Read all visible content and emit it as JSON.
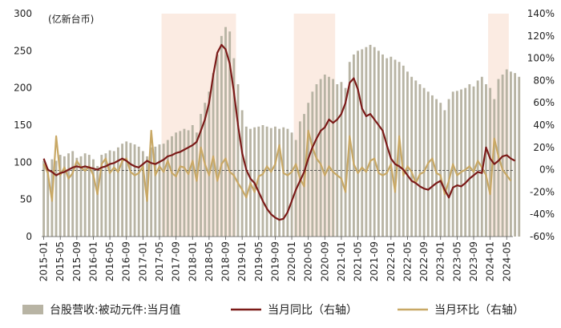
{
  "chart_data": {
    "type": "bar+line",
    "unit_label": "(亿新台币)",
    "left_axis": {
      "min": 0,
      "max": 300,
      "ticks": [
        0,
        50,
        100,
        150,
        200,
        250,
        300
      ]
    },
    "right_axis": {
      "min": -60,
      "max": 140,
      "ticks": [
        "-60%",
        "-40%",
        "-20%",
        "0%",
        "20%",
        "40%",
        "60%",
        "80%",
        "100%",
        "120%",
        "140%"
      ]
    },
    "x_labels": [
      "2015-01",
      "2015-05",
      "2015-09",
      "2016-01",
      "2016-05",
      "2016-09",
      "2017-01",
      "2017-05",
      "2017-09",
      "2018-01",
      "2018-05",
      "2018-09",
      "2019-01",
      "2019-05",
      "2019-09",
      "2020-01",
      "2020-05",
      "2020-09",
      "2021-01",
      "2021-05",
      "2021-09",
      "2022-01",
      "2022-05",
      "2022-09",
      "2023-01",
      "2023-05",
      "2023-09",
      "2024-01",
      "2024-05"
    ],
    "shaded_periods": [
      [
        "2017-06",
        "2018-11"
      ],
      [
        "2020-02",
        "2020-11"
      ],
      [
        "2024-01",
        "2024-05"
      ]
    ],
    "legend": [
      {
        "label": "台股营收:被动元件:当月值",
        "type": "bar",
        "color": "#b8b4a4"
      },
      {
        "label": "当月同比（右轴）",
        "type": "line",
        "color": "#7b1a18"
      },
      {
        "label": "当月环比（右轴）",
        "type": "line",
        "color": "#c8a865"
      }
    ],
    "colors": {
      "bar": "#b8b4a4",
      "yoy": "#7b1a18",
      "mom": "#c8a865",
      "shade": "#fbebe2"
    },
    "series": {
      "bar_anchors": [
        [
          0,
          102
        ],
        [
          1,
          92
        ],
        [
          2,
          104
        ],
        [
          3,
          102
        ],
        [
          4,
          110
        ],
        [
          5,
          108
        ],
        [
          6,
          112
        ],
        [
          7,
          115
        ],
        [
          8,
          106
        ],
        [
          9,
          108
        ],
        [
          10,
          112
        ],
        [
          11,
          110
        ],
        [
          12,
          104
        ],
        [
          13,
          95
        ],
        [
          14,
          110
        ],
        [
          15,
          112
        ],
        [
          16,
          116
        ],
        [
          17,
          115
        ],
        [
          18,
          120
        ],
        [
          19,
          125
        ],
        [
          20,
          128
        ],
        [
          21,
          126
        ],
        [
          22,
          124
        ],
        [
          23,
          121
        ],
        [
          24,
          115
        ],
        [
          25,
          108
        ],
        [
          26,
          120
        ],
        [
          27,
          121
        ],
        [
          28,
          124
        ],
        [
          29,
          125
        ],
        [
          30,
          130
        ],
        [
          31,
          135
        ],
        [
          32,
          140
        ],
        [
          33,
          142
        ],
        [
          34,
          145
        ],
        [
          35,
          143
        ],
        [
          36,
          150
        ],
        [
          37,
          140
        ],
        [
          38,
          165
        ],
        [
          39,
          180
        ],
        [
          40,
          195
        ],
        [
          41,
          220
        ],
        [
          42,
          245
        ],
        [
          43,
          270
        ],
        [
          44,
          282
        ],
        [
          45,
          276
        ],
        [
          46,
          240
        ],
        [
          47,
          205
        ],
        [
          48,
          170
        ],
        [
          49,
          148
        ],
        [
          50,
          145
        ],
        [
          51,
          147
        ],
        [
          52,
          148
        ],
        [
          53,
          150
        ],
        [
          54,
          148
        ],
        [
          55,
          146
        ],
        [
          56,
          148
        ],
        [
          57,
          145
        ],
        [
          58,
          147
        ],
        [
          59,
          145
        ],
        [
          60,
          140
        ],
        [
          61,
          130
        ],
        [
          62,
          155
        ],
        [
          63,
          165
        ],
        [
          64,
          180
        ],
        [
          65,
          195
        ],
        [
          66,
          205
        ],
        [
          67,
          212
        ],
        [
          68,
          218
        ],
        [
          69,
          215
        ],
        [
          70,
          212
        ],
        [
          71,
          205
        ],
        [
          72,
          208
        ],
        [
          73,
          200
        ],
        [
          74,
          235
        ],
        [
          75,
          245
        ],
        [
          76,
          250
        ],
        [
          77,
          252
        ],
        [
          78,
          255
        ],
        [
          79,
          258
        ],
        [
          80,
          255
        ],
        [
          81,
          250
        ],
        [
          82,
          245
        ],
        [
          83,
          240
        ],
        [
          84,
          242
        ],
        [
          85,
          238
        ],
        [
          86,
          235
        ],
        [
          87,
          230
        ],
        [
          88,
          222
        ],
        [
          89,
          215
        ],
        [
          90,
          210
        ],
        [
          91,
          205
        ],
        [
          92,
          200
        ],
        [
          93,
          195
        ],
        [
          94,
          190
        ],
        [
          95,
          185
        ],
        [
          96,
          180
        ],
        [
          97,
          170
        ],
        [
          98,
          185
        ],
        [
          99,
          195
        ],
        [
          100,
          196
        ],
        [
          101,
          198
        ],
        [
          102,
          200
        ],
        [
          103,
          205
        ],
        [
          104,
          202
        ],
        [
          105,
          210
        ],
        [
          106,
          215
        ],
        [
          107,
          205
        ],
        [
          108,
          200
        ],
        [
          109,
          185
        ],
        [
          110,
          212
        ],
        [
          111,
          218
        ],
        [
          112,
          225
        ],
        [
          113,
          222
        ],
        [
          114,
          220
        ],
        [
          115,
          215
        ]
      ],
      "yoy_anchors": [
        [
          0,
          10
        ],
        [
          1,
          0
        ],
        [
          2,
          -2
        ],
        [
          3,
          -5
        ],
        [
          4,
          -3
        ],
        [
          5,
          -2
        ],
        [
          6,
          0
        ],
        [
          7,
          2
        ],
        [
          8,
          3
        ],
        [
          9,
          2
        ],
        [
          10,
          3
        ],
        [
          11,
          2
        ],
        [
          12,
          1
        ],
        [
          13,
          0
        ],
        [
          14,
          2
        ],
        [
          15,
          3
        ],
        [
          16,
          5
        ],
        [
          17,
          6
        ],
        [
          18,
          8
        ],
        [
          19,
          10
        ],
        [
          20,
          8
        ],
        [
          21,
          5
        ],
        [
          22,
          3
        ],
        [
          23,
          2
        ],
        [
          24,
          5
        ],
        [
          25,
          8
        ],
        [
          26,
          6
        ],
        [
          27,
          5
        ],
        [
          28,
          7
        ],
        [
          29,
          9
        ],
        [
          30,
          12
        ],
        [
          31,
          13
        ],
        [
          32,
          15
        ],
        [
          33,
          16
        ],
        [
          34,
          18
        ],
        [
          35,
          20
        ],
        [
          36,
          22
        ],
        [
          37,
          25
        ],
        [
          38,
          35
        ],
        [
          39,
          45
        ],
        [
          40,
          60
        ],
        [
          41,
          85
        ],
        [
          42,
          105
        ],
        [
          43,
          112
        ],
        [
          44,
          108
        ],
        [
          45,
          95
        ],
        [
          46,
          70
        ],
        [
          47,
          40
        ],
        [
          48,
          15
        ],
        [
          49,
          0
        ],
        [
          50,
          -8
        ],
        [
          51,
          -12
        ],
        [
          52,
          -20
        ],
        [
          53,
          -28
        ],
        [
          54,
          -35
        ],
        [
          55,
          -40
        ],
        [
          56,
          -43
        ],
        [
          57,
          -45
        ],
        [
          58,
          -44
        ],
        [
          59,
          -38
        ],
        [
          60,
          -28
        ],
        [
          61,
          -18
        ],
        [
          62,
          -10
        ],
        [
          63,
          -2
        ],
        [
          64,
          10
        ],
        [
          65,
          20
        ],
        [
          66,
          28
        ],
        [
          67,
          35
        ],
        [
          68,
          38
        ],
        [
          69,
          45
        ],
        [
          70,
          42
        ],
        [
          71,
          45
        ],
        [
          72,
          50
        ],
        [
          73,
          60
        ],
        [
          74,
          78
        ],
        [
          75,
          82
        ],
        [
          76,
          72
        ],
        [
          77,
          55
        ],
        [
          78,
          48
        ],
        [
          79,
          50
        ],
        [
          80,
          45
        ],
        [
          81,
          40
        ],
        [
          82,
          35
        ],
        [
          83,
          22
        ],
        [
          84,
          10
        ],
        [
          85,
          5
        ],
        [
          86,
          3
        ],
        [
          87,
          0
        ],
        [
          88,
          -5
        ],
        [
          89,
          -10
        ],
        [
          90,
          -12
        ],
        [
          91,
          -15
        ],
        [
          92,
          -17
        ],
        [
          93,
          -18
        ],
        [
          94,
          -15
        ],
        [
          95,
          -12
        ],
        [
          96,
          -10
        ],
        [
          97,
          -18
        ],
        [
          98,
          -25
        ],
        [
          99,
          -16
        ],
        [
          100,
          -14
        ],
        [
          101,
          -15
        ],
        [
          102,
          -12
        ],
        [
          103,
          -8
        ],
        [
          104,
          -5
        ],
        [
          105,
          -2
        ],
        [
          106,
          -3
        ],
        [
          107,
          20
        ],
        [
          108,
          10
        ],
        [
          109,
          5
        ],
        [
          110,
          8
        ],
        [
          111,
          12
        ],
        [
          112,
          13
        ],
        [
          113,
          10
        ],
        [
          114,
          8
        ]
      ],
      "mom_anchors": [
        [
          0,
          5
        ],
        [
          1,
          -3
        ],
        [
          2,
          -28
        ],
        [
          3,
          30
        ],
        [
          4,
          -5
        ],
        [
          5,
          2
        ],
        [
          6,
          -8
        ],
        [
          7,
          -3
        ],
        [
          8,
          8
        ],
        [
          9,
          2
        ],
        [
          10,
          -1
        ],
        [
          11,
          3
        ],
        [
          12,
          -5
        ],
        [
          13,
          -22
        ],
        [
          14,
          5
        ],
        [
          15,
          10
        ],
        [
          16,
          -3
        ],
        [
          17,
          2
        ],
        [
          18,
          -2
        ],
        [
          19,
          8
        ],
        [
          20,
          10
        ],
        [
          21,
          -2
        ],
        [
          22,
          -5
        ],
        [
          23,
          -3
        ],
        [
          24,
          3
        ],
        [
          25,
          -28
        ],
        [
          26,
          35
        ],
        [
          27,
          -5
        ],
        [
          28,
          3
        ],
        [
          29,
          -2
        ],
        [
          30,
          8
        ],
        [
          31,
          -3
        ],
        [
          32,
          -6
        ],
        [
          33,
          3
        ],
        [
          34,
          2
        ],
        [
          35,
          -4
        ],
        [
          36,
          8
        ],
        [
          37,
          -10
        ],
        [
          38,
          20
        ],
        [
          39,
          5
        ],
        [
          40,
          -5
        ],
        [
          41,
          12
        ],
        [
          42,
          -10
        ],
        [
          43,
          5
        ],
        [
          44,
          10
        ],
        [
          45,
          -2
        ],
        [
          46,
          -5
        ],
        [
          47,
          -12
        ],
        [
          48,
          -18
        ],
        [
          49,
          -25
        ],
        [
          50,
          -12
        ],
        [
          51,
          -20
        ],
        [
          52,
          -6
        ],
        [
          53,
          -4
        ],
        [
          54,
          3
        ],
        [
          55,
          -2
        ],
        [
          56,
          5
        ],
        [
          57,
          22
        ],
        [
          58,
          -3
        ],
        [
          59,
          -5
        ],
        [
          60,
          -2
        ],
        [
          61,
          5
        ],
        [
          62,
          -8
        ],
        [
          63,
          -15
        ],
        [
          64,
          35
        ],
        [
          65,
          20
        ],
        [
          66,
          10
        ],
        [
          67,
          5
        ],
        [
          68,
          -5
        ],
        [
          69,
          3
        ],
        [
          70,
          -2
        ],
        [
          71,
          -5
        ],
        [
          72,
          -8
        ],
        [
          73,
          -20
        ],
        [
          74,
          30
        ],
        [
          75,
          5
        ],
        [
          76,
          -3
        ],
        [
          77,
          2
        ],
        [
          78,
          -2
        ],
        [
          79,
          8
        ],
        [
          80,
          10
        ],
        [
          81,
          -3
        ],
        [
          82,
          -5
        ],
        [
          83,
          -3
        ],
        [
          84,
          5
        ],
        [
          85,
          -20
        ],
        [
          86,
          30
        ],
        [
          87,
          -5
        ],
        [
          88,
          3
        ],
        [
          89,
          -2
        ],
        [
          90,
          -12
        ],
        [
          91,
          -4
        ],
        [
          92,
          -2
        ],
        [
          93,
          6
        ],
        [
          94,
          10
        ],
        [
          95,
          -3
        ],
        [
          96,
          -5
        ],
        [
          97,
          -22
        ],
        [
          98,
          -10
        ],
        [
          99,
          5
        ],
        [
          100,
          -5
        ],
        [
          101,
          -2
        ],
        [
          102,
          0
        ],
        [
          103,
          3
        ],
        [
          104,
          -2
        ],
        [
          105,
          8
        ],
        [
          106,
          2
        ],
        [
          107,
          -5
        ],
        [
          108,
          -22
        ],
        [
          109,
          28
        ],
        [
          110,
          12
        ],
        [
          111,
          0
        ],
        [
          112,
          -5
        ],
        [
          113,
          -10
        ]
      ]
    }
  }
}
